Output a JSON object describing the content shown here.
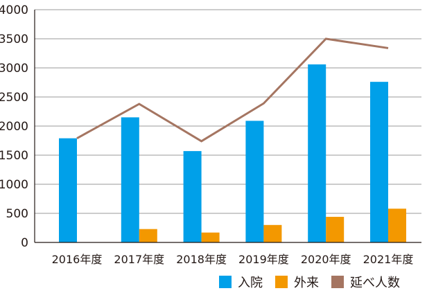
{
  "chart_data": {
    "type": "bar",
    "title": "",
    "xlabel": "",
    "ylabel": "",
    "categories": [
      "2016年度",
      "2017年度",
      "2018年度",
      "2019年度",
      "2020年度",
      "2021年度"
    ],
    "ylim": [
      0,
      4000
    ],
    "yticks": [
      "0",
      "500",
      "1000",
      "1500",
      "2000",
      "2500",
      "3000",
      "3500",
      "4000"
    ],
    "grid": true,
    "legend_position": "bottom-right",
    "series": [
      {
        "name": "入院",
        "type": "bar",
        "color": "#00a0e9",
        "values": [
          1790,
          2150,
          1570,
          2090,
          3060,
          2760
        ]
      },
      {
        "name": "外来",
        "type": "bar",
        "color": "#f39800",
        "values": [
          0,
          230,
          170,
          300,
          440,
          580
        ]
      },
      {
        "name": "延べ人数",
        "type": "line",
        "color": "#a57561",
        "values": [
          1790,
          2380,
          1740,
          2390,
          3500,
          3340
        ]
      }
    ]
  }
}
